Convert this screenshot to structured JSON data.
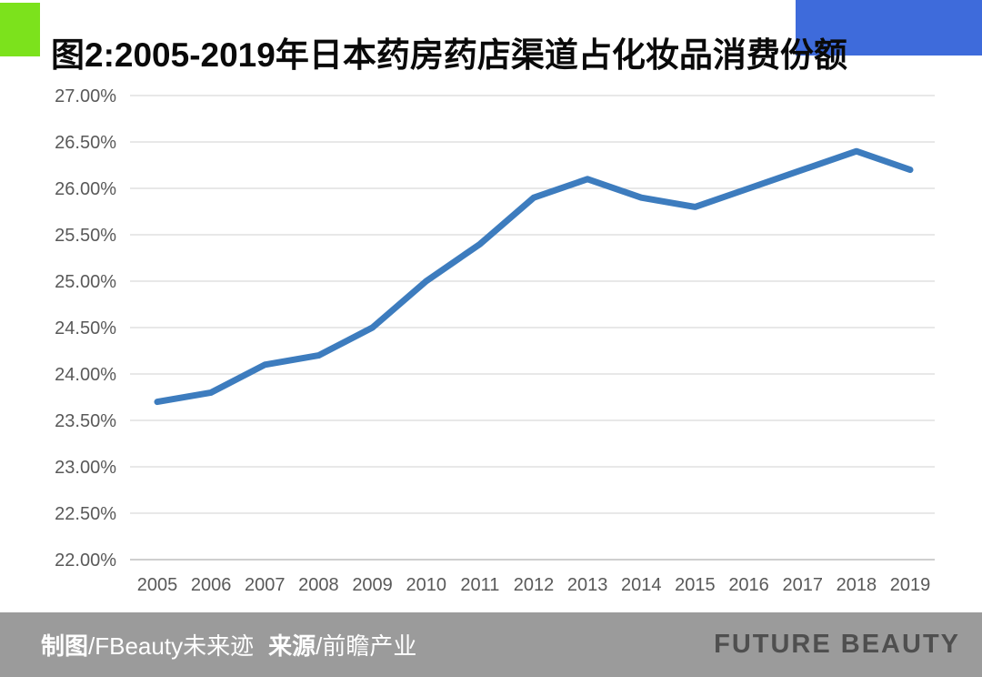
{
  "header": {
    "title": "图2:2005-2019年日本药房药店渠道占化妆品消费份额",
    "accent_green": "#7CE21C",
    "accent_blue": "#3E6BDB"
  },
  "chart_data": {
    "type": "line",
    "title": "图2:2005-2019年日本药房药店渠道占化妆品消费份额",
    "x": [
      2005,
      2006,
      2007,
      2008,
      2009,
      2010,
      2011,
      2012,
      2013,
      2014,
      2015,
      2016,
      2017,
      2018,
      2019
    ],
    "series": [
      {
        "name": "日本药房药店渠道占化妆品消费份额",
        "values": [
          23.7,
          23.8,
          24.1,
          24.2,
          24.5,
          25.0,
          25.4,
          25.9,
          26.1,
          25.9,
          25.8,
          26.0,
          26.2,
          26.4,
          26.2
        ]
      }
    ],
    "ylim": [
      22.0,
      27.0
    ],
    "ytick_step": 0.5,
    "ytick_labels": [
      "27.00%",
      "26.50%",
      "26.00%",
      "25.50%",
      "25.00%",
      "24.50%",
      "24.00%",
      "23.50%",
      "23.00%",
      "22.50%",
      "22.00%"
    ],
    "xtick_labels": [
      "2005",
      "2006",
      "2007",
      "2008",
      "2009",
      "2010",
      "2011",
      "2012",
      "2013",
      "2014",
      "2015",
      "2016",
      "2017",
      "2018",
      "2019"
    ],
    "xlabel": "",
    "ylabel": "",
    "grid": true,
    "legend_position": "none",
    "line_color": "#3D7CBE",
    "gridline_color": "#D9D9D9",
    "axis_line_color": "#BFBFBF",
    "tick_label_color": "#595959"
  },
  "footer": {
    "maker_label": "制图",
    "maker_value": "/FBeauty未来迹",
    "source_label": "来源",
    "source_value": "/前瞻产业",
    "brand": "FUTURE BEAUTY",
    "bar_color": "#9B9B9B",
    "brand_color": "#4F4F4F"
  }
}
